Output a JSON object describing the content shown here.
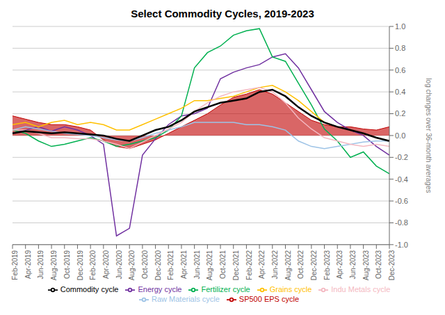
{
  "chart_data": {
    "type": "line",
    "title": "Select Commodity Cycles, 2019-2023",
    "ylabel": "log changes over 36-month averages",
    "categories": [
      "Feb-2019",
      "Apr-2019",
      "Jun-2019",
      "Aug-2019",
      "Oct-2019",
      "Dec-2019",
      "Feb-2020",
      "Apr-2020",
      "Jun-2020",
      "Aug-2020",
      "Oct-2020",
      "Dec-2020",
      "Feb-2021",
      "Apr-2021",
      "Jun-2021",
      "Aug-2021",
      "Oct-2021",
      "Dec-2021",
      "Feb-2022",
      "Apr-2022",
      "Jun-2022",
      "Aug-2022",
      "Oct-2022",
      "Dec-2022",
      "Feb-2023",
      "Apr-2023",
      "Jun-2023",
      "Aug-2023",
      "Oct-2023",
      "Dec-2023"
    ],
    "series": [
      {
        "name": "SP500 EPS cycle",
        "type": "area",
        "color": "#C00000",
        "values": [
          0.18,
          0.15,
          0.12,
          0.1,
          0.1,
          0.08,
          0.05,
          -0.04,
          -0.1,
          -0.12,
          -0.08,
          -0.04,
          0.02,
          0.08,
          0.14,
          0.2,
          0.28,
          0.35,
          0.38,
          0.42,
          0.38,
          0.3,
          0.22,
          0.14,
          0.1,
          0.08,
          0.08,
          0.06,
          0.05,
          0.08
        ]
      },
      {
        "name": "Energy cycle",
        "type": "line",
        "color": "#7030A0",
        "values": [
          0.02,
          0.05,
          0.08,
          0.04,
          0.08,
          0.05,
          0.0,
          -0.08,
          -0.92,
          -0.85,
          -0.18,
          -0.03,
          0.1,
          0.18,
          0.2,
          0.25,
          0.52,
          0.58,
          0.62,
          0.65,
          0.72,
          0.75,
          0.62,
          0.42,
          0.22,
          0.12,
          0.05,
          0.0,
          -0.1,
          -0.18
        ]
      },
      {
        "name": "Fertilizer cycle",
        "type": "line",
        "color": "#00B050",
        "values": [
          0.05,
          0.02,
          -0.05,
          -0.1,
          -0.08,
          -0.05,
          -0.02,
          -0.05,
          -0.1,
          -0.08,
          -0.05,
          -0.02,
          0.05,
          0.18,
          0.62,
          0.76,
          0.82,
          0.92,
          0.96,
          0.98,
          0.72,
          0.68,
          0.48,
          0.28,
          0.06,
          -0.05,
          -0.2,
          -0.15,
          -0.28,
          -0.35
        ]
      },
      {
        "name": "Grains cycle",
        "type": "line",
        "color": "#FFC000",
        "values": [
          0.1,
          0.12,
          0.08,
          0.12,
          0.14,
          0.1,
          0.12,
          0.1,
          0.05,
          0.05,
          0.1,
          0.15,
          0.2,
          0.25,
          0.32,
          0.32,
          0.34,
          0.36,
          0.4,
          0.44,
          0.46,
          0.4,
          0.32,
          0.22,
          0.12,
          0.08,
          0.05,
          0.02,
          -0.02,
          -0.05
        ]
      },
      {
        "name": "Raw Materials cycle",
        "type": "line",
        "color": "#9DC3E6",
        "values": [
          0.05,
          0.08,
          0.06,
          0.04,
          0.02,
          0.01,
          0.0,
          -0.02,
          -0.04,
          -0.05,
          -0.02,
          0.02,
          0.05,
          0.08,
          0.12,
          0.12,
          0.12,
          0.12,
          0.1,
          0.1,
          0.08,
          0.05,
          -0.05,
          -0.1,
          -0.12,
          -0.1,
          -0.08,
          -0.06,
          -0.05,
          -0.05
        ]
      },
      {
        "name": "Indu Metals cycle",
        "type": "line",
        "color": "#F4B8C1",
        "values": [
          0.05,
          0.05,
          0.02,
          -0.02,
          -0.02,
          -0.03,
          -0.03,
          -0.05,
          -0.08,
          -0.12,
          -0.06,
          0.0,
          0.06,
          0.12,
          0.22,
          0.3,
          0.36,
          0.4,
          0.42,
          0.44,
          0.4,
          0.3,
          0.16,
          0.06,
          -0.02,
          -0.05,
          -0.08,
          -0.1,
          -0.08,
          -0.1
        ]
      },
      {
        "name": "Commodity cycle",
        "type": "line",
        "color": "#000000",
        "values": [
          0.02,
          0.04,
          0.03,
          0.02,
          0.03,
          0.02,
          0.01,
          0.0,
          -0.03,
          -0.05,
          0.0,
          0.05,
          0.08,
          0.14,
          0.22,
          0.26,
          0.3,
          0.32,
          0.34,
          0.4,
          0.42,
          0.36,
          0.26,
          0.18,
          0.12,
          0.08,
          0.05,
          0.02,
          -0.02,
          -0.05
        ]
      }
    ],
    "ylim": [
      -1.0,
      1.0
    ],
    "yticks": [
      {
        "value": -1.0,
        "label": "-1.0"
      },
      -0.8,
      -0.6,
      -0.4,
      -0.2,
      {
        "value": 0.0,
        "label": "0.0"
      },
      0.2,
      0.4,
      0.6,
      0.8,
      {
        "value": 1.0,
        "label": "1.0"
      }
    ],
    "grid": true,
    "legend": "bottom"
  }
}
